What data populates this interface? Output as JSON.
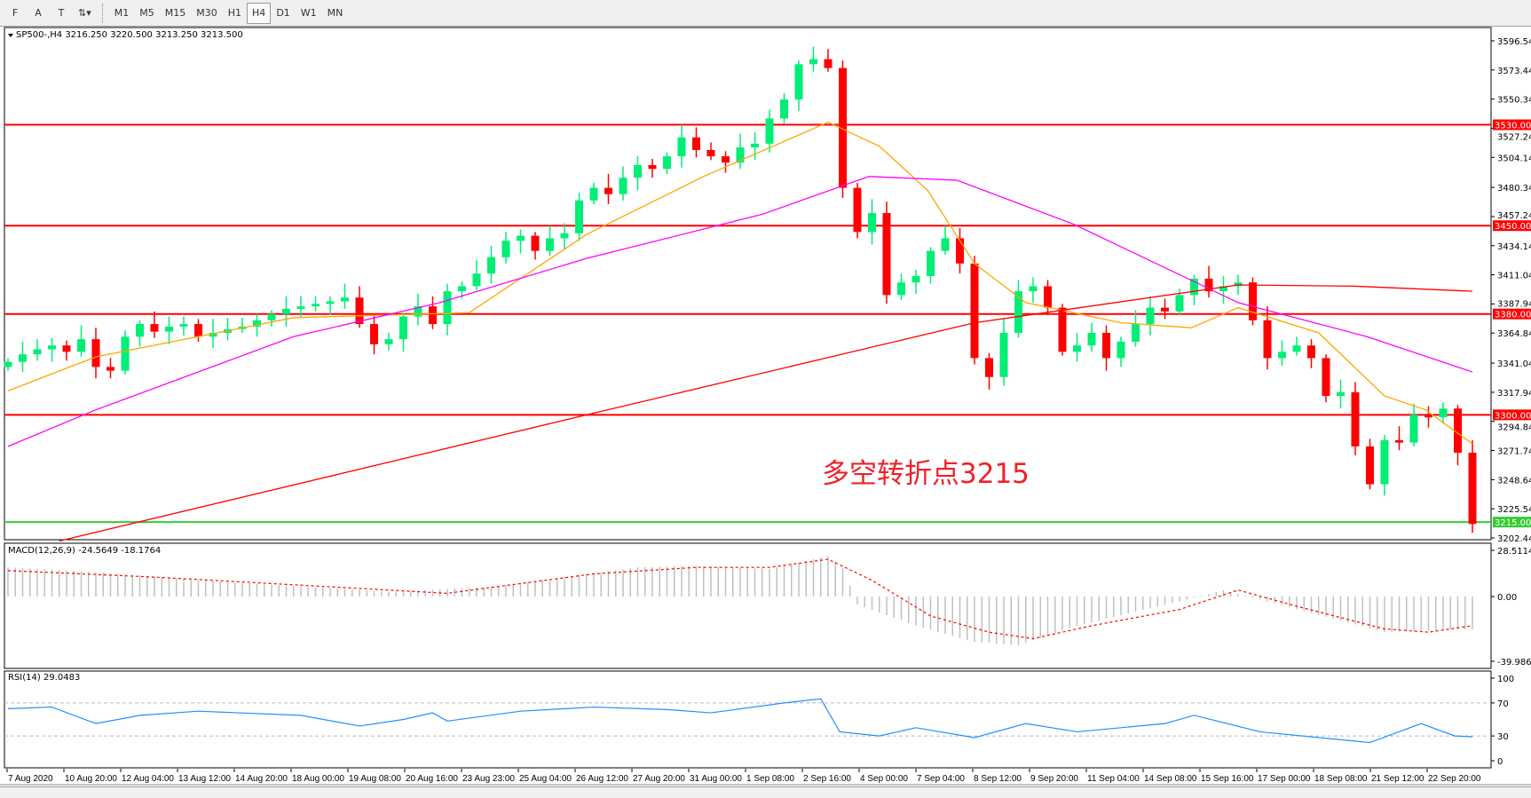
{
  "toolbar": {
    "tools": [
      {
        "name": "fibonacci",
        "label": "F"
      },
      {
        "name": "text",
        "label": "A"
      },
      {
        "name": "text-label",
        "label": "T"
      },
      {
        "name": "arrows",
        "label": "⇅▾"
      }
    ],
    "timeframes": [
      "M1",
      "M5",
      "M15",
      "M30",
      "H1",
      "H4",
      "D1",
      "W1",
      "MN"
    ],
    "active": "H4"
  },
  "chart_data": {
    "type": "candlestick",
    "symbol_header": "SP500-,H4  3216.250 3220.500 3213.250 3213.500",
    "annotation": "多空转折点3215",
    "ylim": [
      3202.44,
      3596.54
    ],
    "price_ticks": [
      "3596.540",
      "3573.440",
      "3550.340",
      "3527.240",
      "3504.140",
      "3480.340",
      "3457.240",
      "3434.140",
      "3411.040",
      "3387.940",
      "3364.840",
      "3341.040",
      "3317.940",
      "3294.840",
      "3271.740",
      "3248.640",
      "3225.540",
      "3202.440"
    ],
    "price_tick_values": [
      3596.54,
      3573.44,
      3550.34,
      3527.24,
      3504.14,
      3480.34,
      3457.24,
      3434.14,
      3411.04,
      3387.94,
      3364.84,
      3341.04,
      3317.94,
      3294.84,
      3271.74,
      3248.64,
      3225.54,
      3202.44
    ],
    "levels": [
      {
        "value": 3530,
        "label": "3530.000",
        "color": "#ff0000"
      },
      {
        "value": 3450,
        "label": "3450.000",
        "color": "#ff0000"
      },
      {
        "value": 3380,
        "label": "3380.000",
        "color": "#ff0000"
      },
      {
        "value": 3300,
        "label": "3300.000",
        "color": "#ff0000"
      },
      {
        "value": 3215,
        "label": "3215.000",
        "color": "#33cc33"
      }
    ],
    "time_labels": [
      "7 Aug 2020",
      "10 Aug 20:00",
      "12 Aug 04:00",
      "13 Aug 12:00",
      "14 Aug 20:00",
      "18 Aug 00:00",
      "19 Aug 08:00",
      "20 Aug 16:00",
      "23 Aug 23:00",
      "25 Aug 04:00",
      "26 Aug 12:00",
      "27 Aug 20:00",
      "31 Aug 00:00",
      "1 Sep 08:00",
      "2 Sep 16:00",
      "4 Sep 00:00",
      "7 Sep 04:00",
      "8 Sep 12:00",
      "9 Sep 20:00",
      "11 Sep 04:00",
      "14 Sep 08:00",
      "15 Sep 16:00",
      "17 Sep 00:00",
      "18 Sep 08:00",
      "21 Sep 12:00",
      "22 Sep 20:00"
    ],
    "close": [
      3342,
      3348,
      3352,
      3355,
      3350,
      3360,
      3338,
      3335,
      3362,
      3372,
      3366,
      3370,
      3372,
      3362,
      3365,
      3368,
      3370,
      3375,
      3380,
      3384,
      3386,
      3388,
      3390,
      3393,
      3372,
      3356,
      3360,
      3378,
      3386,
      3372,
      3398,
      3402,
      3412,
      3425,
      3438,
      3442,
      3430,
      3440,
      3444,
      3470,
      3480,
      3475,
      3488,
      3498,
      3495,
      3505,
      3520,
      3510,
      3505,
      3500,
      3512,
      3515,
      3535,
      3550,
      3578,
      3582,
      3575,
      3480,
      3445,
      3460,
      3395,
      3405,
      3410,
      3430,
      3440,
      3420,
      3345,
      3330,
      3365,
      3398,
      3402,
      3385,
      3350,
      3355,
      3365,
      3345,
      3358,
      3372,
      3385,
      3382,
      3395,
      3408,
      3398,
      3402,
      3405,
      3375,
      3345,
      3350,
      3355,
      3345,
      3315,
      3318,
      3275,
      3245,
      3280,
      3278,
      3300,
      3298,
      3305,
      3270,
      3213.5
    ],
    "up_color": "#00ee76",
    "down_color": "#ff0000",
    "ma_lines": [
      {
        "color": "#ffa500",
        "points": [
          [
            0,
            3319
          ],
          [
            6,
            3346
          ],
          [
            19.5,
            3377
          ],
          [
            31.5,
            3381
          ],
          [
            39.5,
            3443
          ],
          [
            47.5,
            3489
          ],
          [
            56,
            3532
          ],
          [
            59.5,
            3513
          ],
          [
            62.8,
            3478
          ],
          [
            66,
            3420
          ],
          [
            69.5,
            3389
          ],
          [
            76,
            3373
          ],
          [
            80.8,
            3369
          ],
          [
            84,
            3385
          ],
          [
            89.5,
            3365
          ],
          [
            94,
            3315
          ],
          [
            96.8,
            3304
          ],
          [
            100,
            3277
          ]
        ]
      },
      {
        "color": "#ff00ff",
        "points": [
          [
            0,
            3275
          ],
          [
            6,
            3304
          ],
          [
            19.5,
            3362
          ],
          [
            29.5,
            3389
          ],
          [
            39.5,
            3424
          ],
          [
            51.5,
            3459
          ],
          [
            58.8,
            3489
          ],
          [
            64.8,
            3486
          ],
          [
            72.8,
            3451
          ],
          [
            84,
            3389
          ],
          [
            92.8,
            3362
          ],
          [
            100,
            3334
          ]
        ]
      },
      {
        "color": "#ff0000",
        "points": [
          [
            3.5,
            3200
          ],
          [
            39.5,
            3300
          ],
          [
            66,
            3373
          ],
          [
            84,
            3403
          ],
          [
            92,
            3402
          ],
          [
            100,
            3398
          ]
        ]
      }
    ],
    "macd": {
      "label": "MACD(12,26,9) -24.5649 -18.1764",
      "ylim": [
        -39.9869,
        28.5114
      ],
      "ticks": [
        "28.5114",
        "0.00",
        "-39.9869"
      ],
      "tick_values": [
        28.5114,
        0,
        -39.9869
      ],
      "histogram": [
        [
          0,
          18
        ],
        [
          6,
          15
        ],
        [
          15,
          9
        ],
        [
          26,
          3
        ],
        [
          33,
          6
        ],
        [
          43,
          18
        ],
        [
          47,
          19
        ],
        [
          52,
          17
        ],
        [
          56,
          25
        ],
        [
          57,
          18
        ],
        [
          58,
          -5
        ],
        [
          62,
          -18
        ],
        [
          66,
          -28
        ],
        [
          69,
          -30
        ],
        [
          73,
          -18
        ],
        [
          80,
          -3
        ],
        [
          83,
          4
        ],
        [
          86,
          -3
        ],
        [
          94,
          -22
        ],
        [
          100,
          -20
        ]
      ],
      "signal": [
        [
          0,
          16
        ],
        [
          10,
          12
        ],
        [
          26,
          4
        ],
        [
          30,
          2
        ],
        [
          40,
          14
        ],
        [
          47,
          18
        ],
        [
          52,
          18
        ],
        [
          56,
          23
        ],
        [
          59,
          10
        ],
        [
          63,
          -12
        ],
        [
          67,
          -22
        ],
        [
          70,
          -26
        ],
        [
          74,
          -18
        ],
        [
          80,
          -8
        ],
        [
          84,
          4
        ],
        [
          88,
          -6
        ],
        [
          94,
          -20
        ],
        [
          97,
          -22
        ],
        [
          100,
          -18
        ]
      ]
    },
    "rsi": {
      "label": "RSI(14) 29.0483",
      "ylim": [
        0,
        100
      ],
      "ticks": [
        "100",
        "70",
        "30",
        "0"
      ],
      "tick_values": [
        100,
        70,
        30,
        0
      ],
      "levels": [
        70,
        30
      ],
      "values": [
        [
          0,
          63
        ],
        [
          3,
          65
        ],
        [
          6,
          45
        ],
        [
          9,
          55
        ],
        [
          13,
          60
        ],
        [
          20,
          55
        ],
        [
          24,
          42
        ],
        [
          27,
          50
        ],
        [
          29,
          58
        ],
        [
          30,
          48
        ],
        [
          35,
          60
        ],
        [
          40,
          65
        ],
        [
          45,
          62
        ],
        [
          48,
          58
        ],
        [
          53,
          70
        ],
        [
          55.5,
          75
        ],
        [
          56.8,
          35
        ],
        [
          59.5,
          30
        ],
        [
          62,
          40
        ],
        [
          66,
          28
        ],
        [
          69.5,
          45
        ],
        [
          73,
          35
        ],
        [
          79,
          45
        ],
        [
          81,
          55
        ],
        [
          85.5,
          35
        ],
        [
          93,
          22
        ],
        [
          96.5,
          45
        ],
        [
          98.8,
          30
        ],
        [
          100,
          29
        ]
      ]
    }
  }
}
